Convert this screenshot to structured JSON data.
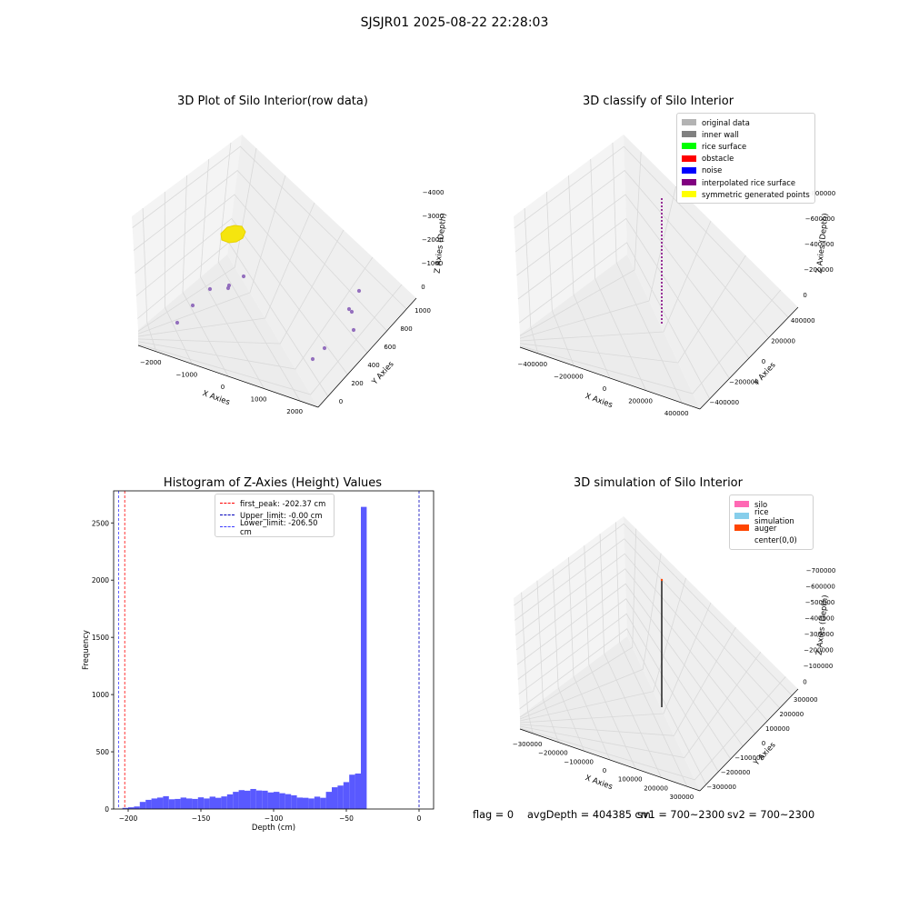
{
  "suptitle": "SJSJR01 2025-08-22 22:28:03",
  "colors": {
    "hist_bar": "#5050ff",
    "first_peak": "#ff0000",
    "upper_limit": "#0000bb",
    "lower_limit": "#3a3aff",
    "grid": "#d9d9d9",
    "pane": "#f4f4f4"
  },
  "plots": {
    "raw3d": {
      "title": "3D Plot of Silo Interior(row data)",
      "xlabel": "X Axies",
      "ylabel": "Y Axies",
      "zlabel": "Z Axies (Depth)",
      "xticks": [
        "−2000",
        "−1000",
        "0",
        "1000",
        "2000"
      ],
      "yticks": [
        "0",
        "200",
        "400",
        "600",
        "800",
        "1000"
      ],
      "zticks": [
        "0",
        "−1000",
        "−2000",
        "−3000",
        "−4000"
      ]
    },
    "classify3d": {
      "title": "3D classify of Silo Interior",
      "xlabel": "X Axies",
      "ylabel": "Y Axies",
      "zlabel": "Z Axies (Depth)",
      "xticks": [
        "−400000",
        "−200000",
        "0",
        "200000",
        "400000"
      ],
      "yticks": [
        "−400000",
        "−200000",
        "0",
        "200000",
        "400000"
      ],
      "zticks": [
        "0",
        "−200000",
        "−400000",
        "−600000",
        "−800000"
      ],
      "legend": [
        {
          "label": "original data",
          "color": "#b3b3b3"
        },
        {
          "label": "inner wall",
          "color": "#808080"
        },
        {
          "label": "rice surface",
          "color": "#00ff00"
        },
        {
          "label": "obstacle",
          "color": "#ff0000"
        },
        {
          "label": "noise",
          "color": "#0000ff"
        },
        {
          "label": "interpolated rice surface",
          "color": "#800080"
        },
        {
          "label": "symmetric generated points",
          "color": "#ffff00"
        }
      ]
    },
    "histogram": {
      "title": "Histogram of Z-Axies (Height) Values",
      "xlabel": "Depth (cm)",
      "ylabel": "Frequency",
      "legend": [
        {
          "label": "first_peak: -202.37 cm",
          "color": "#ff0000"
        },
        {
          "label": "Upper_limit: -0.00 cm",
          "color": "#0000bb"
        },
        {
          "label": "Lower_limit: -206.50 cm",
          "color": "#3a3aff"
        }
      ]
    },
    "simulation3d": {
      "title": "3D simulation of Silo Interior",
      "xlabel": "X Axies",
      "ylabel": "Y Axies",
      "zlabel": "Z Axies (Depth)",
      "xticks": [
        "−300000",
        "−200000",
        "−100000",
        "0",
        "100000",
        "200000",
        "300000"
      ],
      "yticks": [
        "−300000",
        "−200000",
        "−100000",
        "0",
        "100000",
        "200000",
        "300000"
      ],
      "zticks": [
        "0",
        "−100000",
        "−200000",
        "−300000",
        "−400000",
        "−500000",
        "−600000",
        "−700000"
      ],
      "legend": [
        {
          "label": "silo",
          "color": "#ff69b4"
        },
        {
          "label": "rice simulation",
          "color": "#87ceeb"
        },
        {
          "label": "auger",
          "color": "#ff4500"
        },
        {
          "label": "center(0,0)",
          "color": "#ffffff"
        }
      ]
    }
  },
  "footer": {
    "flag": "flag = 0",
    "avg_depth": "avgDepth = 404385 cm",
    "sv1": "sv1 = 700~2300",
    "sv2": "sv2 = 700~2300"
  },
  "chart_data": [
    {
      "type": "histogram",
      "title": "Histogram of Z-Axies (Height) Values",
      "xlabel": "Depth (cm)",
      "ylabel": "Frequency",
      "xlim": [
        -210,
        10
      ],
      "ylim": [
        0,
        2780
      ],
      "xticks": [
        -200,
        -150,
        -100,
        -50,
        0
      ],
      "yticks": [
        0,
        500,
        1000,
        1500,
        2000,
        2500
      ],
      "bin_start": -204,
      "bin_width": 4,
      "counts": [
        10,
        15,
        22,
        62,
        80,
        92,
        100,
        112,
        85,
        88,
        100,
        92,
        88,
        102,
        92,
        108,
        98,
        110,
        128,
        150,
        165,
        160,
        175,
        162,
        160,
        145,
        150,
        138,
        130,
        120,
        100,
        98,
        92,
        108,
        98,
        150,
        190,
        205,
        235,
        300,
        310,
        2640
      ],
      "vlines": [
        {
          "label": "first_peak: -202.37 cm",
          "x": -202.37,
          "style": "dashed"
        },
        {
          "label": "Upper_limit: -0.00 cm",
          "x": -0.0,
          "style": "dashed"
        },
        {
          "label": "Lower_limit: -206.50 cm",
          "x": -206.5,
          "style": "dashed"
        }
      ]
    },
    {
      "type": "scatter",
      "title": "3D Plot of Silo Interior(row data)",
      "xlabel": "X Axies",
      "ylabel": "Y Axies",
      "zlabel": "Z Axies (Depth)",
      "xlim": [
        -2000,
        2000
      ],
      "ylim": [
        0,
        1000
      ],
      "zlim": [
        -4000,
        0
      ]
    },
    {
      "type": "scatter",
      "title": "3D classify of Silo Interior",
      "xlim": [
        -400000,
        400000
      ],
      "ylim": [
        -400000,
        400000
      ],
      "zlim": [
        -800000,
        0
      ]
    },
    {
      "type": "scatter",
      "title": "3D simulation of Silo Interior",
      "xlim": [
        -300000,
        300000
      ],
      "ylim": [
        -300000,
        300000
      ],
      "zlim": [
        -700000,
        0
      ]
    }
  ]
}
